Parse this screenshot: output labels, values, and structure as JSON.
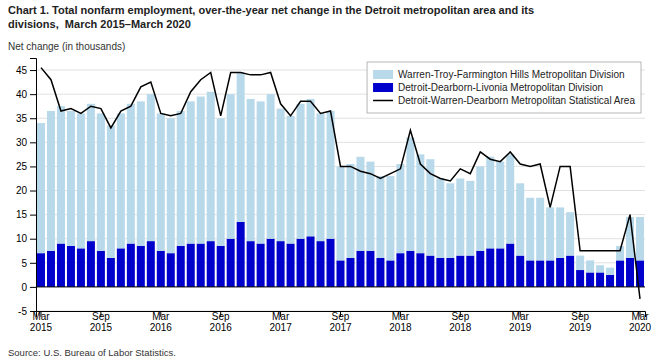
{
  "chart_data": {
    "type": "bar",
    "title": "Chart 1. Total nonfarm employment, over-the-year net change in the Detroit metropolitan area and its\ndivisions,  March 2015–March 2020",
    "ylabel": "Net change (in thousands)",
    "source": "Source: U.S. Bureau of Labor Statistics.",
    "categories": [
      "Mar\n2015",
      null,
      null,
      null,
      null,
      null,
      "Sep\n2015",
      null,
      null,
      null,
      null,
      null,
      "Mar\n2016",
      null,
      null,
      null,
      null,
      null,
      "Sep\n2016",
      null,
      null,
      null,
      null,
      null,
      "Mar\n2017",
      null,
      null,
      null,
      null,
      null,
      "Sep\n2017",
      null,
      null,
      null,
      null,
      null,
      "Mar\n2018",
      null,
      null,
      null,
      null,
      null,
      "Sep\n2018",
      null,
      null,
      null,
      null,
      null,
      "Mar\n2019",
      null,
      null,
      null,
      null,
      null,
      "Sep\n2019",
      null,
      null,
      null,
      null,
      null,
      "Mar\n2020"
    ],
    "series": [
      {
        "name": "Warren-Troy-Farmington Hills Metropolitan Division",
        "type": "bar",
        "color": "#B8D9EA",
        "values": [
          27.0,
          29.0,
          28.5,
          28.0,
          28.0,
          28.5,
          28.5,
          27.5,
          28.0,
          29.0,
          30.0,
          30.5,
          28.5,
          28.0,
          28.0,
          29.5,
          30.5,
          31.0,
          26.5,
          30.0,
          31.0,
          29.5,
          29.5,
          30.0,
          27.5,
          26.5,
          28.0,
          28.5,
          26.5,
          26.5,
          19.5,
          19.5,
          19.5,
          18.5,
          17.0,
          17.5,
          18.5,
          23.5,
          20.5,
          20.0,
          16.5,
          15.5,
          16.0,
          15.5,
          17.5,
          19.0,
          18.0,
          18.5,
          15.0,
          13.0,
          13.0,
          11.0,
          10.5,
          9.0,
          3.0,
          2.5,
          1.5,
          1.5,
          3.0,
          8.5,
          9.0
        ]
      },
      {
        "name": "Detroit-Dearborn-Livonia Metropolitan Division",
        "type": "bar",
        "color": "#0000CC",
        "values": [
          7.0,
          7.5,
          9.0,
          8.5,
          8.0,
          9.5,
          7.5,
          6.0,
          8.0,
          9.0,
          8.5,
          9.5,
          7.5,
          7.0,
          8.5,
          9.0,
          9.0,
          9.5,
          8.5,
          10.0,
          13.5,
          9.5,
          9.0,
          10.0,
          9.5,
          9.0,
          10.0,
          10.5,
          9.5,
          10.0,
          5.5,
          6.0,
          7.5,
          7.5,
          6.0,
          5.5,
          7.0,
          7.5,
          7.0,
          6.5,
          6.0,
          6.0,
          6.5,
          6.5,
          7.5,
          8.0,
          8.0,
          9.0,
          6.5,
          5.5,
          5.5,
          5.5,
          6.0,
          6.5,
          3.5,
          3.0,
          3.0,
          2.5,
          5.5,
          6.0,
          5.5
        ]
      },
      {
        "name": "Detroit-Warren-Dearborn Metropolitan Statistical Area",
        "type": "line",
        "color": "#000000",
        "values": [
          45.5,
          43.0,
          36.5,
          37.0,
          36.0,
          37.5,
          37.0,
          33.0,
          36.5,
          37.5,
          41.5,
          42.5,
          36.0,
          35.5,
          36.0,
          40.5,
          43.0,
          44.5,
          35.5,
          44.5,
          44.5,
          44.0,
          44.0,
          44.5,
          38.0,
          35.5,
          38.5,
          38.5,
          36.0,
          36.5,
          25.0,
          25.0,
          24.0,
          23.5,
          22.5,
          23.5,
          24.5,
          32.5,
          25.5,
          23.5,
          22.5,
          22.0,
          24.5,
          23.5,
          28.0,
          26.5,
          26.0,
          28.0,
          25.5,
          25.0,
          25.5,
          16.5,
          25.0,
          25.0,
          7.5,
          7.5,
          7.5,
          7.5,
          7.5,
          15.0,
          -2.5
        ]
      }
    ],
    "stacked": true,
    "ylim": [
      -5.0,
      47.5
    ],
    "yticks": [
      -5,
      0,
      5,
      10,
      15,
      20,
      25,
      30,
      35,
      40,
      45
    ],
    "grid": true,
    "legend": "upper right"
  }
}
